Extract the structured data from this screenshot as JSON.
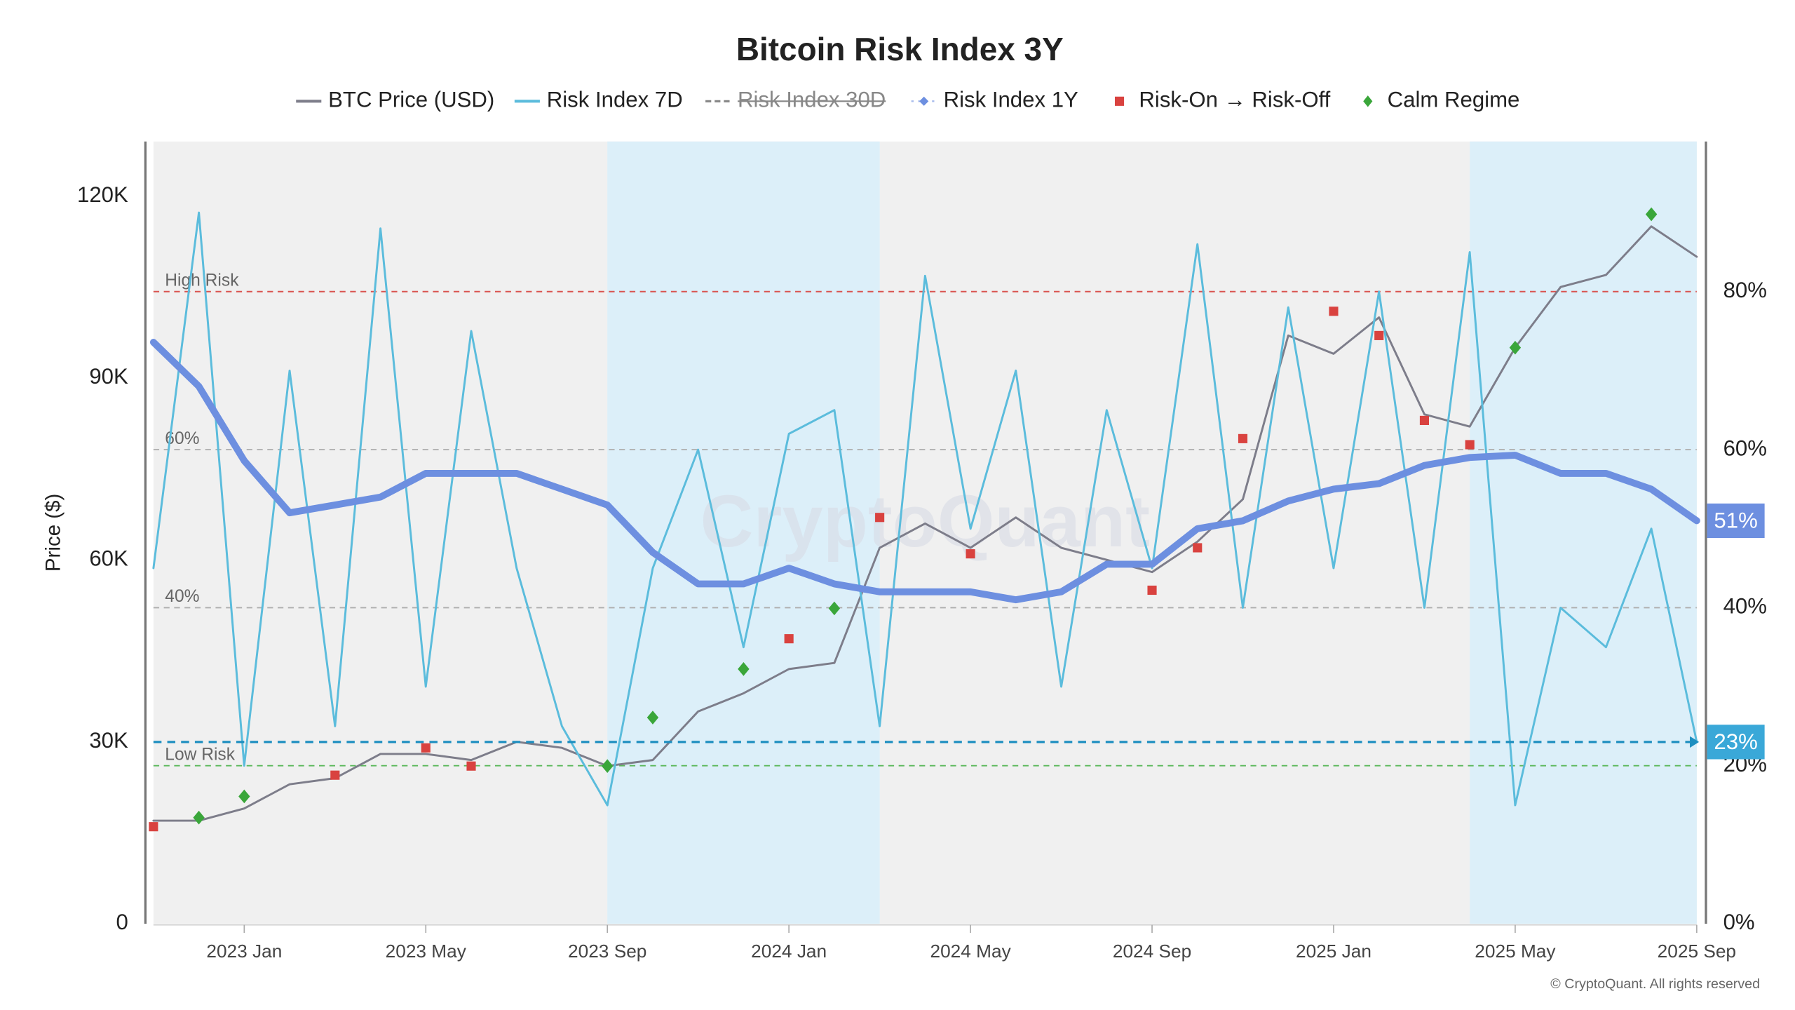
{
  "chart_data": {
    "type": "line",
    "title": "Bitcoin Risk Index 3Y",
    "y_label": "Price ($)",
    "watermark": "CryptoQuant",
    "footer": "© CryptoQuant. All rights reserved",
    "x": [
      "2022-11",
      "2022-12",
      "2023-01",
      "2023-02",
      "2023-03",
      "2023-04",
      "2023-05",
      "2023-06",
      "2023-07",
      "2023-08",
      "2023-09",
      "2023-10",
      "2023-11",
      "2023-12",
      "2024-01",
      "2024-02",
      "2024-03",
      "2024-04",
      "2024-05",
      "2024-06",
      "2024-07",
      "2024-08",
      "2024-09",
      "2024-10",
      "2024-11",
      "2024-12",
      "2025-01",
      "2025-02",
      "2025-03",
      "2025-04",
      "2025-05",
      "2025-06",
      "2025-07",
      "2025-08",
      "2025-09"
    ],
    "xlim": [
      "2022-11",
      "2025-09"
    ],
    "xticks": [
      {
        "value": "2023-01",
        "label": "2023 Jan"
      },
      {
        "value": "2023-05",
        "label": "2023 May"
      },
      {
        "value": "2023-09",
        "label": "2023 Sep"
      },
      {
        "value": "2024-01",
        "label": "2024 Jan"
      },
      {
        "value": "2024-05",
        "label": "2024 May"
      },
      {
        "value": "2024-09",
        "label": "2024 Sep"
      },
      {
        "value": "2025-01",
        "label": "2025 Jan"
      },
      {
        "value": "2025-05",
        "label": "2025 May"
      },
      {
        "value": "2025-09",
        "label": "2025 Sep"
      }
    ],
    "ylim": [
      0,
      129000
    ],
    "yticks": [
      0,
      {
        "value": 30000,
        "label": "30K"
      },
      {
        "value": 60000,
        "label": "60K"
      },
      {
        "value": 90000,
        "label": "90K"
      },
      {
        "value": 120000,
        "label": "120K"
      }
    ],
    "y2lim": [
      0,
      99
    ],
    "y2ticks": [
      {
        "value": 0,
        "label": "0%"
      },
      {
        "value": 20,
        "label": "20%"
      },
      {
        "value": 40,
        "label": "40%"
      },
      {
        "value": 60,
        "label": "60%"
      },
      {
        "value": 80,
        "label": "80%"
      }
    ],
    "shaded_ranges": [
      {
        "from": "2023-09",
        "to": "2024-03"
      },
      {
        "from": "2025-04",
        "to": "2025-09"
      }
    ],
    "ref_lines": [
      {
        "value": 80,
        "label": "High Risk",
        "color": "#d9534f"
      },
      {
        "value": 60,
        "label": "60%",
        "color": "#b0b0b0"
      },
      {
        "value": 40,
        "label": "40%",
        "color": "#b0b0b0"
      },
      {
        "value": 20,
        "label": "Low Risk",
        "color": "#5cb85c"
      }
    ],
    "current_markers": [
      {
        "value": 51,
        "label": "51%",
        "color": "#6d8fe0",
        "line": false
      },
      {
        "value": 23,
        "label": "23%",
        "color": "#3aa8d8",
        "line": true
      }
    ],
    "series": [
      {
        "name": "BTC Price (USD)",
        "color": "#7d7d8a",
        "style": "line",
        "axis": "y",
        "values": [
          17000,
          17000,
          19000,
          23000,
          24000,
          28000,
          28000,
          27000,
          30000,
          29000,
          26000,
          27000,
          35000,
          38000,
          42000,
          43000,
          62000,
          66000,
          62000,
          67000,
          62000,
          60000,
          58000,
          63000,
          70000,
          97000,
          94000,
          100000,
          84000,
          82000,
          95000,
          105000,
          107000,
          115000,
          110000
        ]
      },
      {
        "name": "Risk Index 7D",
        "color": "#5bbcdc",
        "style": "line",
        "axis": "y2",
        "values": [
          45,
          90,
          20,
          70,
          25,
          88,
          30,
          75,
          45,
          25,
          15,
          45,
          60,
          35,
          62,
          65,
          25,
          82,
          50,
          70,
          30,
          65,
          45,
          86,
          40,
          78,
          45,
          80,
          40,
          85,
          15,
          40,
          35,
          50,
          23
        ]
      },
      {
        "name": "Risk Index 30D",
        "color": "#888888",
        "style": "dashed",
        "axis": "y2",
        "hidden": true,
        "values": [
          null,
          null,
          null,
          null,
          null,
          null,
          null,
          null,
          null,
          null,
          null,
          null,
          null,
          null,
          null,
          null,
          null,
          null,
          null,
          null,
          null,
          null,
          null,
          null,
          null,
          null,
          null,
          null,
          null,
          null,
          null,
          null,
          null,
          null,
          null
        ]
      },
      {
        "name": "Risk Index 1Y",
        "color": "#6d8fe0",
        "style": "thick",
        "axis": "y2",
        "values": [
          73.6,
          68,
          58.6,
          52,
          53,
          54,
          57,
          57,
          57,
          55,
          53,
          47,
          43,
          43,
          45,
          43,
          42,
          42,
          42,
          41,
          42,
          45.5,
          45.5,
          50,
          51,
          53.5,
          55,
          55.7,
          58,
          59,
          59.3,
          57,
          57,
          55,
          51
        ]
      },
      {
        "name": "Risk-On → Risk-Off",
        "color": "#d9423f",
        "style": "square",
        "axis": "y",
        "x": [
          "2022-11",
          "2023-03",
          "2023-05",
          "2023-06",
          "2024-01",
          "2024-03",
          "2024-05",
          "2024-09",
          "2024-10",
          "2024-11",
          "2025-01",
          "2025-02",
          "2025-03",
          "2025-04"
        ],
        "values": [
          16000,
          24500,
          29000,
          26000,
          47000,
          67000,
          61000,
          55000,
          62000,
          80000,
          101000,
          97000,
          83000,
          79000
        ]
      },
      {
        "name": "Calm Regime",
        "color": "#3aa63a",
        "style": "diamond",
        "axis": "y",
        "x": [
          "2022-12",
          "2023-01",
          "2023-09",
          "2023-10",
          "2023-12",
          "2024-02",
          "2025-05",
          "2025-08"
        ],
        "values": [
          17500,
          21000,
          26000,
          34000,
          42000,
          52000,
          95000,
          117000
        ]
      }
    ]
  }
}
